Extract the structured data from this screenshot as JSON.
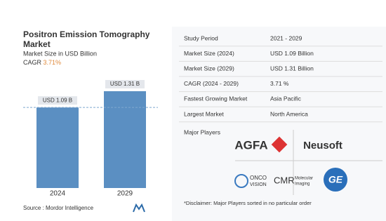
{
  "chart_data": {
    "type": "bar",
    "title": "Positron Emission Tomography Market",
    "subtitle": "Market Size in USD Billion",
    "cagr": {
      "label": "CAGR",
      "value": "3.71%"
    },
    "categories": [
      "2024",
      "2029"
    ],
    "values": [
      1.09,
      1.31
    ],
    "value_labels": [
      "USD 1.09 B",
      "USD 1.31 B"
    ],
    "color": "#5b8fc2",
    "source": "Source : Mordor Intelligence"
  },
  "table": {
    "rows": [
      [
        "Study Period",
        "2021 - 2029"
      ],
      [
        "Market Size (2024)",
        "USD 1.09 Billion"
      ],
      [
        "Market Size (2029)",
        "USD 1.31 Billion"
      ],
      [
        "CAGR (2024 - 2029)",
        "3.71 %"
      ],
      [
        "Fastest Growing Market",
        "Asia Pacific"
      ],
      [
        "Largest Market",
        "North America"
      ]
    ]
  },
  "major_players": {
    "label": "Major Players",
    "logos": [
      "AGFA",
      "Neusoft",
      "ONCO",
      "VISION",
      "CMR",
      "Molecular",
      "Imaging",
      "GE"
    ]
  },
  "disclaimer": "*Disclaimer: Major Players sorted in no particular order"
}
